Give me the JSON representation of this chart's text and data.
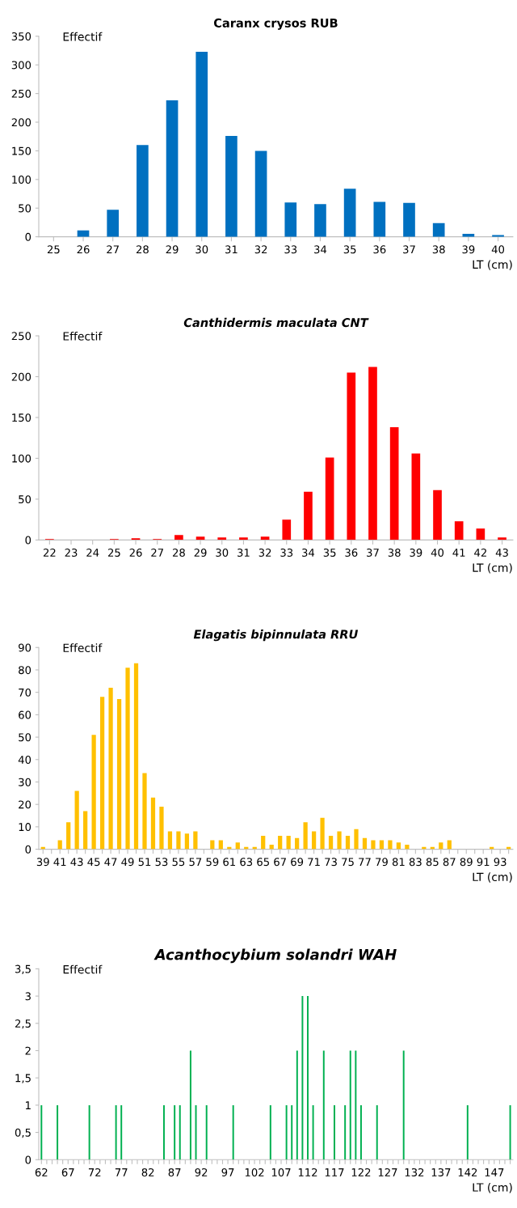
{
  "chart_data": [
    {
      "type": "bar",
      "title": "Caranx crysos RUB",
      "xlabel": "LT (cm)",
      "ylabel": "Effectif",
      "color": "#0070c0",
      "grid": false,
      "categories": [
        "25",
        "26",
        "27",
        "28",
        "29",
        "30",
        "31",
        "32",
        "33",
        "34",
        "35",
        "36",
        "37",
        "38",
        "39",
        "40"
      ],
      "values": [
        0,
        11,
        47,
        160,
        238,
        323,
        176,
        150,
        60,
        57,
        84,
        61,
        59,
        24,
        5,
        3
      ],
      "ylim": [
        0,
        350
      ],
      "yticks": [
        0,
        50,
        100,
        150,
        200,
        250,
        300,
        350
      ]
    },
    {
      "type": "bar",
      "title": "Canthidermis maculata CNT",
      "xlabel": "LT (cm)",
      "ylabel": "Effectif",
      "color": "#ff0000",
      "grid": false,
      "categories": [
        "22",
        "23",
        "24",
        "25",
        "26",
        "27",
        "28",
        "29",
        "30",
        "31",
        "32",
        "33",
        "34",
        "35",
        "36",
        "37",
        "38",
        "39",
        "40",
        "41",
        "42",
        "43"
      ],
      "values": [
        1,
        0,
        0,
        1,
        2,
        1,
        6,
        4,
        3,
        3,
        4,
        25,
        59,
        101,
        205,
        212,
        138,
        106,
        61,
        23,
        14,
        3
      ],
      "ylim": [
        0,
        250
      ],
      "yticks": [
        0,
        50,
        100,
        150,
        200,
        250
      ]
    },
    {
      "type": "bar",
      "title": "Elagatis bipinnulata RRU",
      "xlabel": "LT (cm)",
      "ylabel": "Effectif",
      "color": "#ffc000",
      "grid": false,
      "categories": [
        "39",
        null,
        "41",
        null,
        "43",
        null,
        "45",
        null,
        "47",
        null,
        "49",
        null,
        "51",
        null,
        "53",
        null,
        "55",
        null,
        "57",
        null,
        "59",
        null,
        "61",
        null,
        "63",
        null,
        "65",
        null,
        "67",
        null,
        "69",
        null,
        "71",
        null,
        "73",
        null,
        "75",
        null,
        "77",
        null,
        "79",
        null,
        "81",
        null,
        "83",
        null,
        "85",
        null,
        "87",
        null,
        "89",
        null,
        "91",
        null,
        "93",
        null
      ],
      "values": [
        1,
        0,
        4,
        12,
        26,
        17,
        51,
        68,
        72,
        67,
        81,
        83,
        34,
        23,
        19,
        8,
        8,
        7,
        8,
        0,
        4,
        4,
        1,
        3,
        1,
        1,
        6,
        2,
        6,
        6,
        5,
        12,
        8,
        14,
        6,
        8,
        6,
        9,
        5,
        4,
        4,
        4,
        3,
        2,
        0,
        1,
        1,
        3,
        4,
        0,
        0,
        0,
        0,
        1,
        0,
        1
      ],
      "ylim": [
        0,
        90
      ],
      "yticks": [
        0,
        10,
        20,
        30,
        40,
        50,
        60,
        70,
        80,
        90
      ]
    },
    {
      "type": "bar",
      "title": "Acanthocybium solandri WAH",
      "xlabel": "LT (cm)",
      "ylabel": "Effectif",
      "color": "#00b050",
      "grid": false,
      "categories": [
        "62",
        null,
        null,
        null,
        null,
        "67",
        null,
        null,
        null,
        null,
        "72",
        null,
        null,
        null,
        null,
        "77",
        null,
        null,
        null,
        null,
        "82",
        null,
        null,
        null,
        null,
        "87",
        null,
        null,
        null,
        null,
        "92",
        null,
        null,
        null,
        null,
        "97",
        null,
        null,
        null,
        null,
        "102",
        null,
        null,
        null,
        null,
        "107",
        null,
        null,
        null,
        null,
        "112",
        null,
        null,
        null,
        null,
        "117",
        null,
        null,
        null,
        null,
        "122",
        null,
        null,
        null,
        null,
        "127",
        null,
        null,
        null,
        null,
        "132",
        null,
        null,
        null,
        null,
        "137",
        null,
        null,
        null,
        null,
        "142",
        null,
        null,
        null,
        null,
        "147",
        null,
        null,
        null
      ],
      "values": [
        1,
        0,
        0,
        1,
        0,
        0,
        0,
        0,
        0,
        1,
        0,
        0,
        0,
        0,
        1,
        1,
        0,
        0,
        0,
        0,
        0,
        0,
        0,
        1,
        0,
        1,
        1,
        0,
        2,
        1,
        0,
        1,
        0,
        0,
        0,
        0,
        1,
        0,
        0,
        0,
        0,
        0,
        0,
        1,
        0,
        0,
        1,
        1,
        2,
        3,
        3,
        1,
        0,
        2,
        0,
        1,
        0,
        1,
        2,
        2,
        1,
        0,
        0,
        1,
        0,
        0,
        0,
        0,
        2,
        0,
        0,
        0,
        0,
        0,
        0,
        0,
        0,
        0,
        0,
        0,
        1,
        0,
        0,
        0,
        0,
        0,
        0,
        0,
        1
      ],
      "ylim": [
        0,
        3.5
      ],
      "yticks": [
        0,
        {
          "value": 0.5,
          "label": "0,5"
        },
        1,
        {
          "value": 1.5,
          "label": "1,5"
        },
        2,
        {
          "value": 2.5,
          "label": "2,5"
        },
        3,
        {
          "value": 3.5,
          "label": "3,5"
        }
      ]
    }
  ]
}
